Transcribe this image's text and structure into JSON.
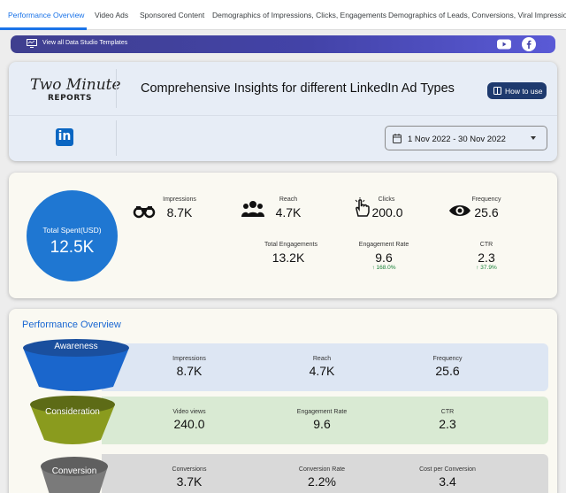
{
  "tabs": [
    "Performance Overview",
    "Video Ads",
    "Sponsored Content",
    "Demographics of Impressions, Clicks, Engagements",
    "Demographics of Leads, Conversions, Viral Impressions"
  ],
  "banner": {
    "text": "View all Data Studio Templates",
    "icons": [
      "monitor-icon",
      "youtube-icon",
      "facebook-icon"
    ]
  },
  "header": {
    "logo_title": "Two Minute",
    "logo_subtitle": "REPORTS",
    "title": "Comprehensive Insights for different LinkedIn Ad Types",
    "how_to_use": "How to use",
    "date_range": "1 Nov 2022 - 30 Nov 2022",
    "linkedin_glyph": "in"
  },
  "kpis": {
    "total_spent": {
      "label": "Total Spent(USD)",
      "value": "12.5K"
    },
    "impressions": {
      "label": "Impressions",
      "value": "8.7K"
    },
    "reach": {
      "label": "Reach",
      "value": "4.7K"
    },
    "clicks": {
      "label": "Clicks",
      "value": "200.0"
    },
    "frequency": {
      "label": "Frequency",
      "value": "25.6"
    },
    "total_engagements": {
      "label": "Total Engagements",
      "value": "13.2K"
    },
    "engagement_rate": {
      "label": "Engagement Rate",
      "value": "9.6",
      "delta": "↑ 168.0%"
    },
    "ctr": {
      "label": "CTR",
      "value": "2.3",
      "delta": "↑ 37.9%"
    }
  },
  "performance": {
    "title": "Performance Overview",
    "stages": [
      {
        "name": "Awareness",
        "metrics": [
          {
            "label": "Impressions",
            "value": "8.7K"
          },
          {
            "label": "Reach",
            "value": "4.7K"
          },
          {
            "label": "Frequency",
            "value": "25.6"
          }
        ]
      },
      {
        "name": "Consideration",
        "metrics": [
          {
            "label": "Video views",
            "value": "240.0"
          },
          {
            "label": "Engagement Rate",
            "value": "9.6"
          },
          {
            "label": "CTR",
            "value": "2.3"
          }
        ]
      },
      {
        "name": "Conversion",
        "metrics": [
          {
            "label": "Conversions",
            "value": "3.7K"
          },
          {
            "label": "Conversion Rate",
            "value": "2.2%"
          },
          {
            "label": "Cost per Conversion",
            "value": "3.4"
          }
        ]
      }
    ]
  },
  "colors": {
    "accent": "#1a73e8",
    "awareness_band": "#dde6f3",
    "consideration_band": "#d9ead3",
    "conversion_band": "#d9d9d9",
    "awareness_funnel": "#1f5fbf",
    "consideration_funnel": "#7a8c1f",
    "conversion_funnel": "#5f5f5f",
    "delta_positive": "#188038"
  }
}
